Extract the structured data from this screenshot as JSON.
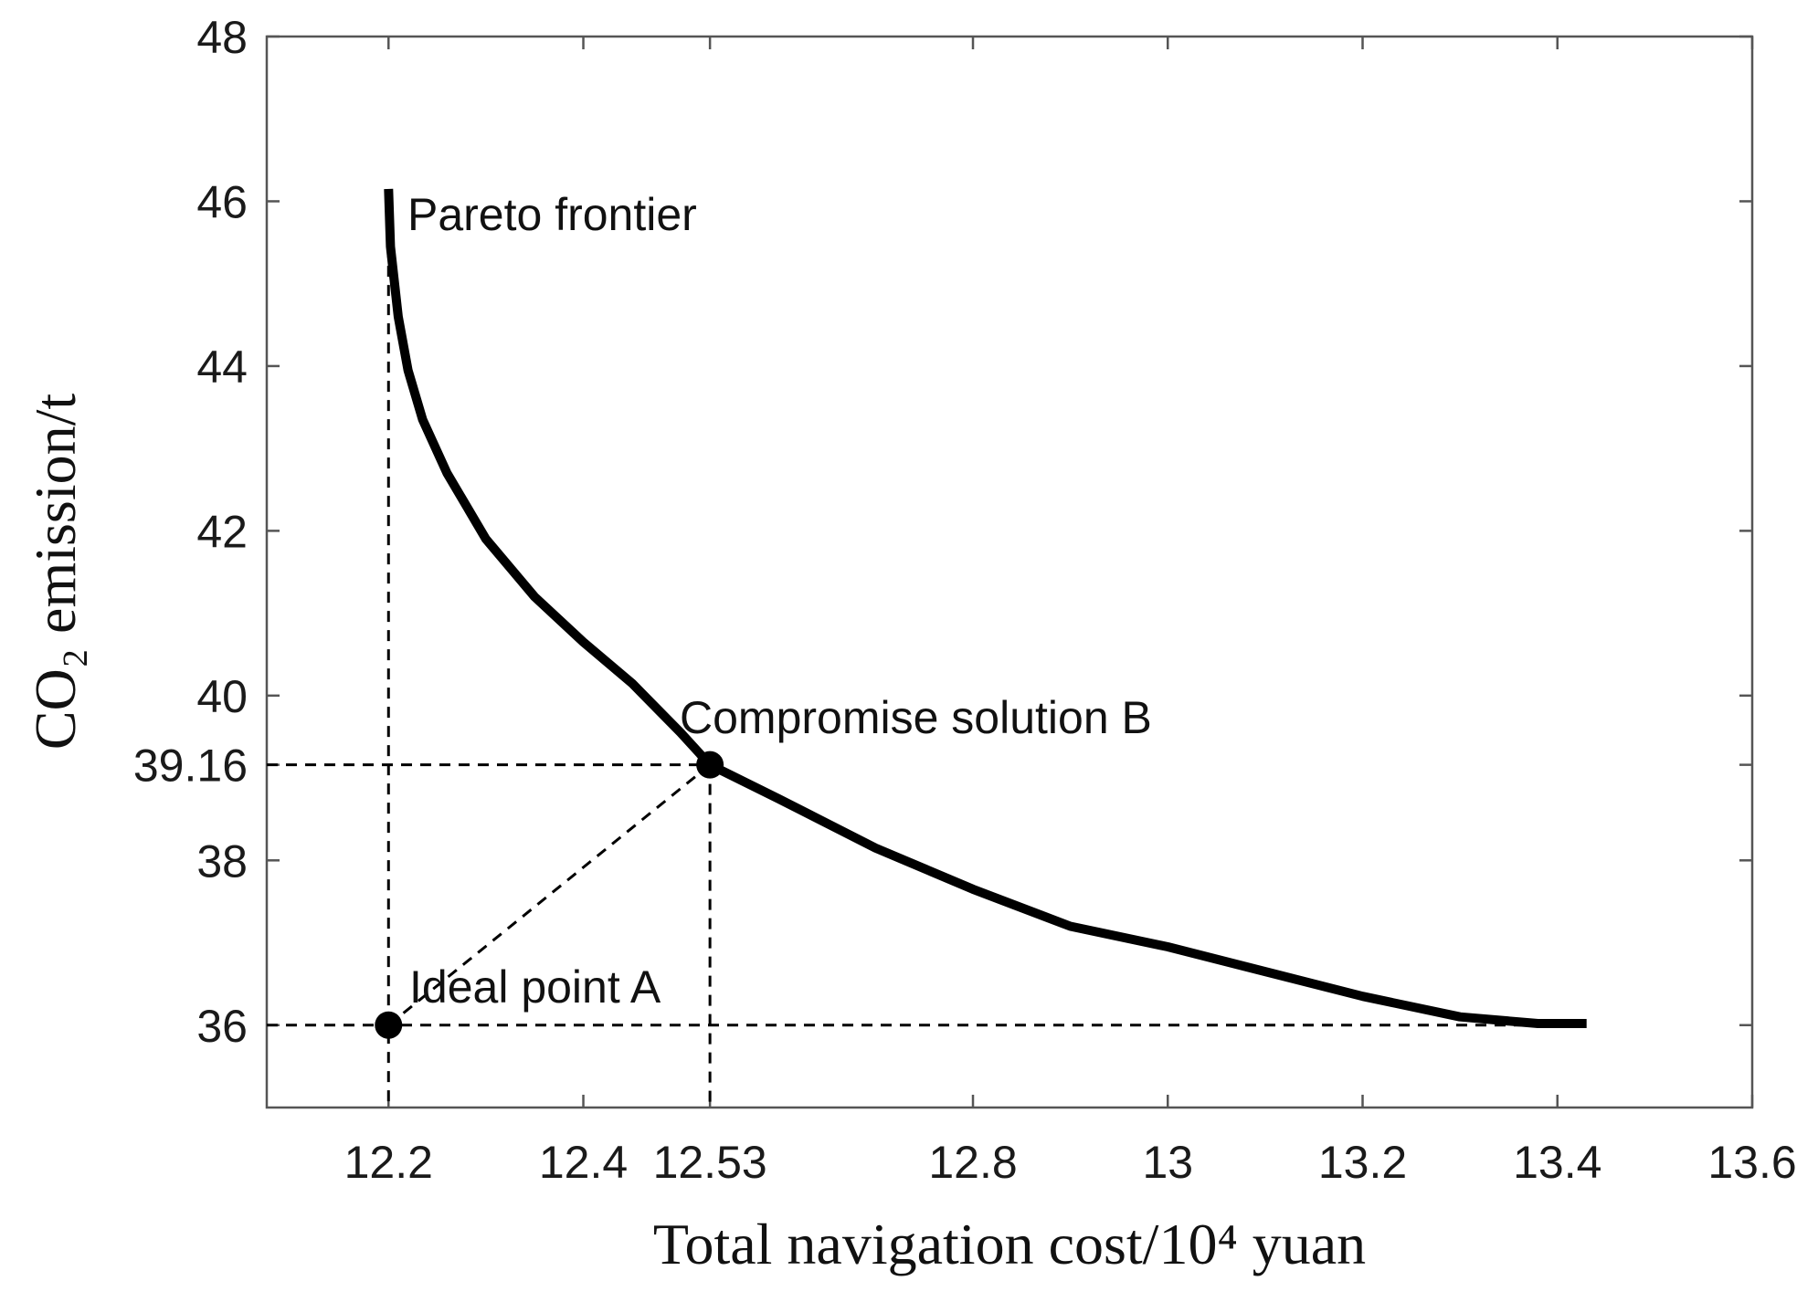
{
  "chart_data": {
    "type": "line",
    "xlabel": "Total navigation cost/10⁴ yuan",
    "ylabel": "CO₂ emission/t",
    "xlim": [
      12.075,
      13.6
    ],
    "ylim": [
      35,
      48
    ],
    "x_ticks": [
      12.2,
      12.4,
      12.53,
      12.8,
      13,
      13.2,
      13.4,
      13.6
    ],
    "x_tick_labels": [
      "12.2",
      "12.4",
      "12.53",
      "12.8",
      "13",
      "13.2",
      "13.4",
      "13.6"
    ],
    "y_ticks": [
      36,
      38,
      39.16,
      40,
      42,
      44,
      46,
      48
    ],
    "y_tick_labels": [
      "36",
      "38",
      "39.16",
      "40",
      "42",
      "44",
      "46",
      "48"
    ],
    "grid": false,
    "series": [
      {
        "name": "Pareto frontier",
        "color": "#000000",
        "x": [
          12.2,
          12.202,
          12.21,
          12.22,
          12.235,
          12.26,
          12.3,
          12.35,
          12.4,
          12.45,
          12.5,
          12.53,
          12.6,
          12.7,
          12.8,
          12.9,
          13.0,
          13.1,
          13.2,
          13.3,
          13.38,
          13.43
        ],
        "y": [
          46.15,
          45.45,
          44.6,
          43.95,
          43.35,
          42.7,
          41.9,
          41.2,
          40.65,
          40.15,
          39.55,
          39.16,
          38.75,
          38.15,
          37.65,
          37.2,
          36.95,
          36.65,
          36.35,
          36.1,
          36.02,
          36.02
        ]
      }
    ],
    "points": [
      {
        "label": "Ideal point A",
        "x": 12.2,
        "y": 36
      },
      {
        "label": "Compromise solution B",
        "x": 12.53,
        "y": 39.16
      }
    ],
    "annotations": [
      "Pareto frontier",
      "Compromise solution B",
      "Ideal point A"
    ]
  },
  "colors": {
    "line": "#000000",
    "axis": "#555555",
    "text": "#1a1a1a"
  }
}
